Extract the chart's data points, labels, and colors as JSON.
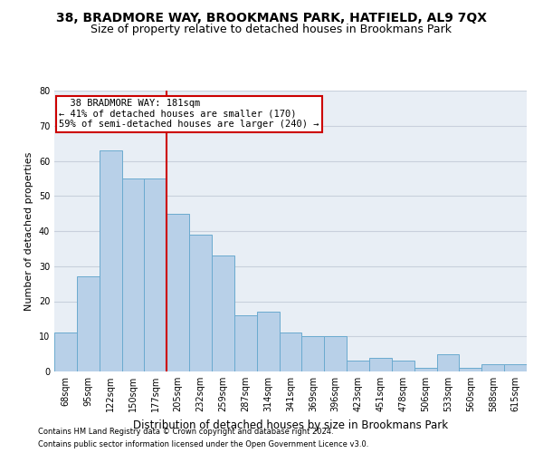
{
  "title": "38, BRADMORE WAY, BROOKMANS PARK, HATFIELD, AL9 7QX",
  "subtitle": "Size of property relative to detached houses in Brookmans Park",
  "xlabel": "Distribution of detached houses by size in Brookmans Park",
  "ylabel": "Number of detached properties",
  "categories": [
    "68sqm",
    "95sqm",
    "122sqm",
    "150sqm",
    "177sqm",
    "205sqm",
    "232sqm",
    "259sqm",
    "287sqm",
    "314sqm",
    "341sqm",
    "369sqm",
    "396sqm",
    "423sqm",
    "451sqm",
    "478sqm",
    "506sqm",
    "533sqm",
    "560sqm",
    "588sqm",
    "615sqm"
  ],
  "values": [
    11,
    27,
    63,
    55,
    55,
    45,
    39,
    33,
    16,
    17,
    11,
    10,
    10,
    3,
    4,
    3,
    1,
    5,
    1,
    2,
    2
  ],
  "bar_color": "#b8d0e8",
  "bar_edge_color": "#6aaacf",
  "red_line_x": 4.5,
  "annotation_text": "  38 BRADMORE WAY: 181sqm  \n← 41% of detached houses are smaller (170)\n59% of semi-detached houses are larger (240) →",
  "annotation_box_color": "#ffffff",
  "annotation_box_edge": "#cc0000",
  "ylim": [
    0,
    80
  ],
  "yticks": [
    0,
    10,
    20,
    30,
    40,
    50,
    60,
    70,
    80
  ],
  "grid_color": "#c8d0dc",
  "background_color": "#e8eef5",
  "footer_line1": "Contains HM Land Registry data © Crown copyright and database right 2024.",
  "footer_line2": "Contains public sector information licensed under the Open Government Licence v3.0.",
  "title_fontsize": 10,
  "subtitle_fontsize": 9,
  "xlabel_fontsize": 8.5,
  "ylabel_fontsize": 8,
  "tick_fontsize": 7,
  "annotation_fontsize": 7.5,
  "footer_fontsize": 6
}
